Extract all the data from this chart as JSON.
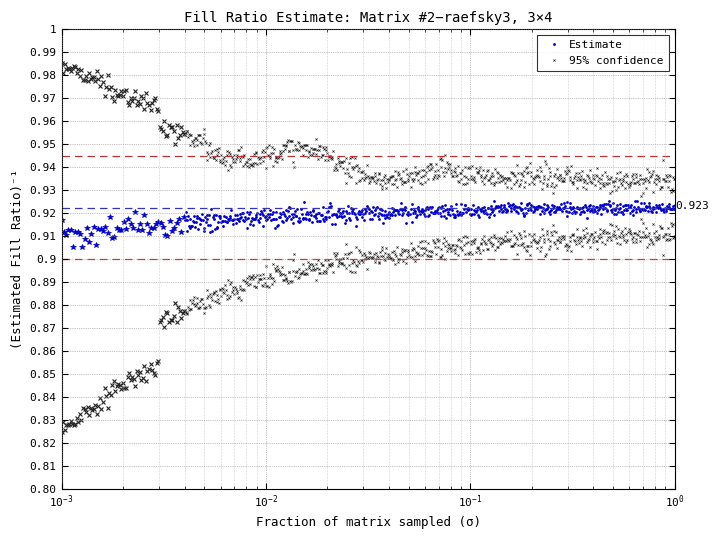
{
  "title": "Fill Ratio Estimate: Matrix #2−raefsky3, 3×4",
  "xlabel": "Fraction of matrix sampled (σ)",
  "ylabel": "(Estimated Fill Ratio)⁻¹",
  "xlim": [
    0.001,
    1.0
  ],
  "ylim": [
    0.8,
    1.0
  ],
  "yticks": [
    0.8,
    0.81,
    0.82,
    0.83,
    0.84,
    0.85,
    0.86,
    0.87,
    0.88,
    0.89,
    0.9,
    0.91,
    0.92,
    0.93,
    0.94,
    0.95,
    0.96,
    0.97,
    0.98,
    0.99,
    1.0
  ],
  "hline_red1": 0.945,
  "hline_red2": 0.9,
  "hline_blue": 0.922,
  "annotation": "0.923",
  "true_val": 0.923,
  "estimate_color": "#0000CC",
  "ci_color": "#222222",
  "hline_red_color": "#BB3333",
  "hline_blue_color": "#3333BB",
  "legend_estimate": "Estimate",
  "legend_ci": "95% confidence",
  "title_fs": 10,
  "label_fs": 9,
  "tick_fs": 8
}
